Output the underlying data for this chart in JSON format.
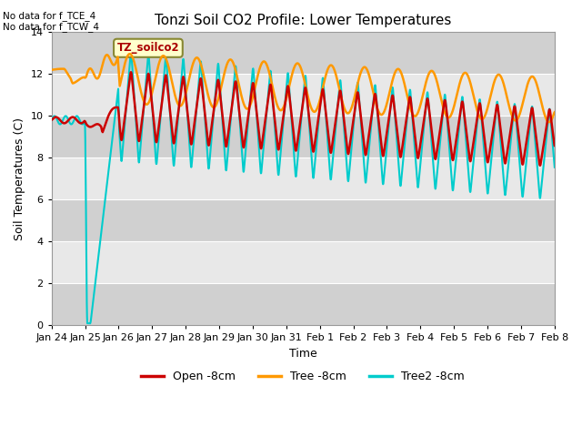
{
  "title": "Tonzi Soil CO2 Profile: Lower Temperatures",
  "xlabel": "Time",
  "ylabel": "Soil Temperatures (C)",
  "top_left_text": "No data for f_TCE_4\nNo data for f_TCW_4",
  "legend_label_text": "TZ_soilco2",
  "ylim": [
    0,
    14
  ],
  "yticks": [
    0,
    2,
    4,
    6,
    8,
    10,
    12,
    14
  ],
  "x_labels": [
    "Jan 24",
    "Jan 25",
    "Jan 26",
    "Jan 27",
    "Jan 28",
    "Jan 29",
    "Jan 30",
    "Jan 31",
    "Feb 1",
    "Feb 2",
    "Feb 3",
    "Feb 4",
    "Feb 5",
    "Feb 6",
    "Feb 7",
    "Feb 8"
  ],
  "legend_entries": [
    "Open -8cm",
    "Tree -8cm",
    "Tree2 -8cm"
  ],
  "line_colors": {
    "open": "#cc0000",
    "tree": "#ff9900",
    "tree2": "#00cccc"
  },
  "background_color": "#ffffff",
  "plot_bg_color": "#e8e8e8",
  "grid_color": "#ffffff",
  "band_color": "#d0d0d0",
  "lw_open": 1.8,
  "lw_tree": 1.8,
  "lw_tree2": 1.5
}
